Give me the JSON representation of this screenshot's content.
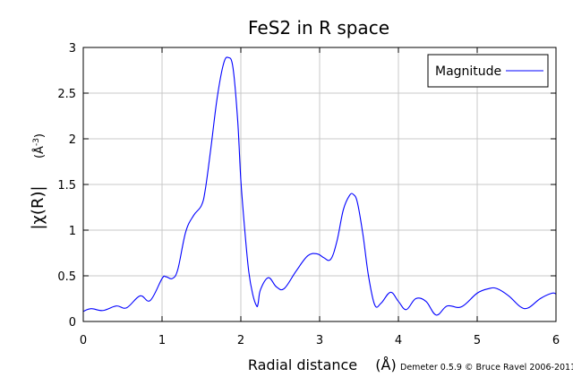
{
  "chart_data": {
    "type": "line",
    "title": "FeS2 in R space",
    "xlabel": "Radial distance",
    "xunit": "(Å)",
    "ylabel": "|χ(R)|",
    "yunit_base": "(Å",
    "yunit_exp": "-3",
    "yunit_close": ")",
    "credit": "Demeter 0.5.9 © Bruce Ravel 2006-2011",
    "xlim": [
      0,
      6
    ],
    "ylim": [
      0,
      3
    ],
    "x_ticks": [
      "0",
      "1",
      "2",
      "3",
      "4",
      "5",
      "6"
    ],
    "y_ticks": [
      "0",
      "0.5",
      "1",
      "1.5",
      "2",
      "2.5",
      "3"
    ],
    "x_tick_values": [
      0,
      1,
      2,
      3,
      4,
      5,
      6
    ],
    "y_tick_values": [
      0,
      0.5,
      1,
      1.5,
      2,
      2.5,
      3
    ],
    "grid": true,
    "legend_position": "top-right",
    "series": [
      {
        "name": "Magnitude",
        "color": "#0000ff",
        "x": [
          0,
          0.1,
          0.25,
          0.42,
          0.55,
          0.72,
          0.85,
          1.0,
          1.05,
          1.13,
          1.2,
          1.3,
          1.4,
          1.5,
          1.55,
          1.62,
          1.7,
          1.78,
          1.84,
          1.9,
          1.96,
          2.0,
          2.05,
          2.1,
          2.15,
          2.2,
          2.22,
          2.25,
          2.35,
          2.45,
          2.55,
          2.7,
          2.85,
          2.97,
          3.05,
          3.14,
          3.22,
          3.3,
          3.38,
          3.43,
          3.48,
          3.55,
          3.62,
          3.7,
          3.78,
          3.9,
          4.0,
          4.1,
          4.22,
          4.35,
          4.48,
          4.62,
          4.8,
          5.0,
          5.15,
          5.25,
          5.4,
          5.55,
          5.65,
          5.8,
          5.95,
          6.0
        ],
        "y": [
          0.11,
          0.14,
          0.12,
          0.17,
          0.15,
          0.28,
          0.23,
          0.47,
          0.49,
          0.47,
          0.57,
          0.98,
          1.16,
          1.27,
          1.45,
          1.9,
          2.45,
          2.82,
          2.89,
          2.78,
          2.2,
          1.55,
          1.0,
          0.55,
          0.3,
          0.17,
          0.2,
          0.35,
          0.48,
          0.38,
          0.36,
          0.55,
          0.72,
          0.74,
          0.7,
          0.68,
          0.88,
          1.22,
          1.38,
          1.39,
          1.3,
          0.95,
          0.5,
          0.18,
          0.2,
          0.32,
          0.22,
          0.13,
          0.25,
          0.22,
          0.07,
          0.17,
          0.16,
          0.31,
          0.36,
          0.36,
          0.28,
          0.16,
          0.15,
          0.25,
          0.31,
          0.3
        ]
      }
    ]
  }
}
